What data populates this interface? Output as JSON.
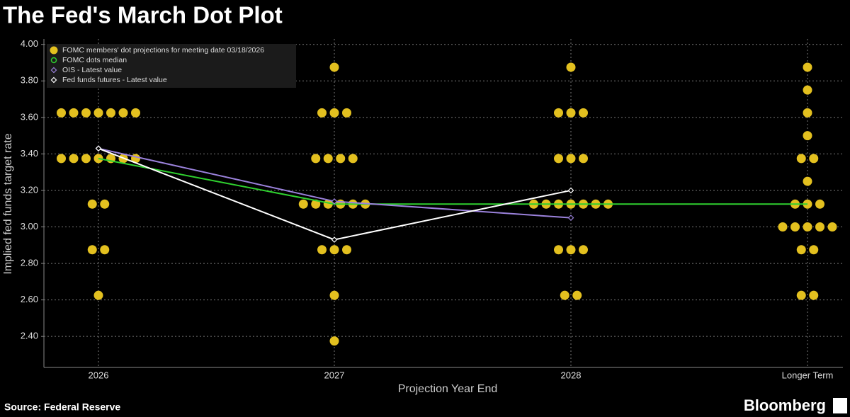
{
  "chart_data": {
    "type": "dot",
    "title": "The Fed's March Dot Plot",
    "x_label": "Projection Year End",
    "y_label": "Implied fed funds target rate",
    "source": "Source: Federal Reserve",
    "brand": "Bloomberg",
    "categories": [
      "2026",
      "2027",
      "2028",
      "Longer Term"
    ],
    "ylim": [
      2.23,
      4.03
    ],
    "yticks": [
      {
        "value": 2.4,
        "label": "2.40"
      },
      {
        "value": 2.6,
        "label": "2.60"
      },
      {
        "value": 2.8,
        "label": "2.80"
      },
      {
        "value": 3.0,
        "label": "3.00"
      },
      {
        "value": 3.2,
        "label": "3.20"
      },
      {
        "value": 3.4,
        "label": "3.40"
      },
      {
        "value": 3.6,
        "label": "3.60"
      },
      {
        "value": 3.8,
        "label": "3.80"
      },
      {
        "value": 4.0,
        "label": "4.00"
      }
    ],
    "grid": true,
    "legend": "top-left",
    "series": [
      {
        "name": "FOMC members' dot projections for meeting date 03/18/2026",
        "color": "#e3c01f",
        "marker": "circle",
        "values": [
          [
            3.625,
            3.625,
            3.625,
            3.625,
            3.625,
            3.625,
            3.625,
            3.375,
            3.375,
            3.375,
            3.375,
            3.375,
            3.375,
            3.375,
            3.125,
            3.125,
            2.875,
            2.875,
            2.625
          ],
          [
            3.875,
            3.625,
            3.625,
            3.625,
            3.375,
            3.375,
            3.375,
            3.375,
            3.125,
            3.125,
            3.125,
            3.125,
            3.125,
            3.125,
            2.875,
            2.875,
            2.875,
            2.625,
            2.375
          ],
          [
            3.875,
            3.625,
            3.625,
            3.625,
            3.375,
            3.375,
            3.375,
            3.125,
            3.125,
            3.125,
            3.125,
            3.125,
            3.125,
            3.125,
            2.875,
            2.875,
            2.875,
            2.625,
            2.625
          ],
          [
            3.875,
            3.75,
            3.625,
            3.5,
            3.375,
            3.375,
            3.25,
            3.125,
            3.125,
            3.125,
            3.0,
            3.0,
            3.0,
            3.0,
            3.0,
            2.875,
            2.875,
            2.625,
            2.625
          ]
        ]
      },
      {
        "name": "FOMC dots median",
        "color": "#2fd12f",
        "marker": "circle-open",
        "values": [
          3.375,
          3.125,
          3.125,
          3.125
        ]
      },
      {
        "name": "OIS - Latest value",
        "color": "#9b82dc",
        "marker": "diamond",
        "values": [
          3.43,
          3.14,
          3.05,
          null
        ]
      },
      {
        "name": "Fed funds futures - Latest value",
        "color": "#ffffff",
        "marker": "diamond",
        "values": [
          3.43,
          2.93,
          3.2,
          null
        ]
      }
    ]
  }
}
